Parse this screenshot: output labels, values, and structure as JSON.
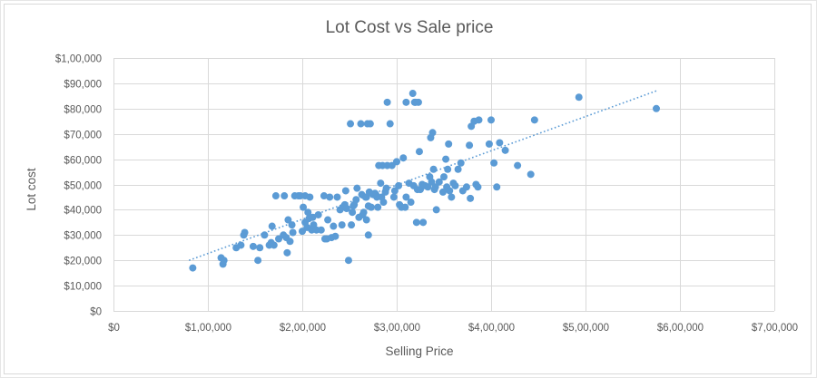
{
  "chart_data": {
    "type": "scatter",
    "title": "Lot Cost vs Sale price",
    "xlabel": "Selling Price",
    "ylabel": "Lot cost",
    "xlim": [
      0,
      700000
    ],
    "ylim": [
      0,
      100000
    ],
    "x_ticks": [
      0,
      100000,
      200000,
      300000,
      400000,
      500000,
      600000,
      700000
    ],
    "x_tick_labels": [
      "$0",
      "$1,00,000",
      "$2,00,000",
      "$3,00,000",
      "$4,00,000",
      "$5,00,000",
      "$6,00,000",
      "$7,00,000"
    ],
    "y_ticks": [
      0,
      10000,
      20000,
      30000,
      40000,
      50000,
      60000,
      70000,
      80000,
      90000,
      100000
    ],
    "y_tick_labels": [
      "$0",
      "$10,000",
      "$20,000",
      "$30,000",
      "$40,000",
      "$50,000",
      "$60,000",
      "$70,000",
      "$80,000",
      "$90,000",
      "$1,00,000"
    ],
    "grid": true,
    "legend": "none",
    "marker_color": "#5b9bd5",
    "trendline": {
      "type": "linear",
      "style": "dotted",
      "color": "#5b9bd5",
      "x": [
        80000,
        575000
      ],
      "y": [
        20000,
        87000
      ]
    },
    "points": [
      [
        84000,
        17000
      ],
      [
        114000,
        21000
      ],
      [
        116000,
        18500
      ],
      [
        117000,
        20000
      ],
      [
        130000,
        25000
      ],
      [
        135000,
        26000
      ],
      [
        138000,
        30000
      ],
      [
        139000,
        31000
      ],
      [
        148000,
        25500
      ],
      [
        153000,
        20000
      ],
      [
        155000,
        25000
      ],
      [
        160000,
        30000
      ],
      [
        165000,
        26000
      ],
      [
        167000,
        27000
      ],
      [
        168000,
        33500
      ],
      [
        170000,
        26000
      ],
      [
        172000,
        45500
      ],
      [
        175000,
        28500
      ],
      [
        180000,
        30000
      ],
      [
        181000,
        45500
      ],
      [
        183000,
        29000
      ],
      [
        184000,
        23000
      ],
      [
        185000,
        36000
      ],
      [
        187000,
        27500
      ],
      [
        189000,
        34000
      ],
      [
        190000,
        31000
      ],
      [
        192000,
        45500
      ],
      [
        196000,
        45500
      ],
      [
        198000,
        45500
      ],
      [
        200000,
        31500
      ],
      [
        201000,
        41000
      ],
      [
        203000,
        45500
      ],
      [
        203000,
        35000
      ],
      [
        205000,
        33000
      ],
      [
        206000,
        39000
      ],
      [
        207000,
        36500
      ],
      [
        208000,
        45000
      ],
      [
        210000,
        32000
      ],
      [
        211000,
        37000
      ],
      [
        212000,
        34000
      ],
      [
        215000,
        32000
      ],
      [
        217000,
        38000
      ],
      [
        220000,
        32000
      ],
      [
        223000,
        45500
      ],
      [
        224000,
        28500
      ],
      [
        226000,
        28500
      ],
      [
        227000,
        36000
      ],
      [
        229000,
        45000
      ],
      [
        231000,
        29000
      ],
      [
        233000,
        33500
      ],
      [
        235000,
        29500
      ],
      [
        237000,
        45000
      ],
      [
        240000,
        40000
      ],
      [
        242000,
        34000
      ],
      [
        243000,
        41000
      ],
      [
        245000,
        42000
      ],
      [
        246000,
        47500
      ],
      [
        247000,
        40500
      ],
      [
        249000,
        20000
      ],
      [
        251000,
        74000
      ],
      [
        252000,
        34000
      ],
      [
        253000,
        39000
      ],
      [
        254000,
        41500
      ],
      [
        255000,
        42000
      ],
      [
        257000,
        44000
      ],
      [
        258000,
        48500
      ],
      [
        260000,
        37000
      ],
      [
        262000,
        74000
      ],
      [
        263000,
        46000
      ],
      [
        264000,
        38000
      ],
      [
        265000,
        39000
      ],
      [
        267000,
        45000
      ],
      [
        268000,
        45000
      ],
      [
        268000,
        36000
      ],
      [
        269000,
        74000
      ],
      [
        270000,
        30000
      ],
      [
        270000,
        41500
      ],
      [
        271000,
        47000
      ],
      [
        272000,
        74000
      ],
      [
        273000,
        41000
      ],
      [
        275000,
        46000
      ],
      [
        277000,
        46500
      ],
      [
        278000,
        46000
      ],
      [
        279000,
        45000
      ],
      [
        280000,
        41000
      ],
      [
        281000,
        57500
      ],
      [
        283000,
        50500
      ],
      [
        284000,
        45000
      ],
      [
        285000,
        57500
      ],
      [
        286000,
        43000
      ],
      [
        288000,
        47000
      ],
      [
        289000,
        48500
      ],
      [
        290000,
        57500
      ],
      [
        290000,
        82500
      ],
      [
        293000,
        74000
      ],
      [
        295000,
        57500
      ],
      [
        297000,
        45000
      ],
      [
        298000,
        47500
      ],
      [
        300000,
        59000
      ],
      [
        302000,
        49500
      ],
      [
        303000,
        42000
      ],
      [
        305000,
        41000
      ],
      [
        307000,
        60500
      ],
      [
        309000,
        41000
      ],
      [
        310000,
        45000
      ],
      [
        310000,
        82500
      ],
      [
        313000,
        50500
      ],
      [
        315000,
        43000
      ],
      [
        317000,
        86000
      ],
      [
        318000,
        49500
      ],
      [
        319000,
        82500
      ],
      [
        320000,
        82500
      ],
      [
        321000,
        35000
      ],
      [
        322000,
        48000
      ],
      [
        323000,
        82500
      ],
      [
        324000,
        63000
      ],
      [
        325000,
        48000
      ],
      [
        327000,
        50000
      ],
      [
        328000,
        35000
      ],
      [
        330000,
        49500
      ],
      [
        333000,
        49000
      ],
      [
        335000,
        53000
      ],
      [
        336000,
        68500
      ],
      [
        337000,
        51000
      ],
      [
        338000,
        70500
      ],
      [
        339000,
        56000
      ],
      [
        340000,
        48000
      ],
      [
        341000,
        49000
      ],
      [
        342000,
        40000
      ],
      [
        345000,
        51000
      ],
      [
        349000,
        47000
      ],
      [
        350000,
        53000
      ],
      [
        352000,
        60000
      ],
      [
        353000,
        49000
      ],
      [
        354000,
        56000
      ],
      [
        355000,
        66000
      ],
      [
        356000,
        47500
      ],
      [
        358000,
        45000
      ],
      [
        360000,
        50500
      ],
      [
        362000,
        49500
      ],
      [
        365000,
        56000
      ],
      [
        368000,
        58500
      ],
      [
        370000,
        47500
      ],
      [
        374000,
        49000
      ],
      [
        377000,
        65500
      ],
      [
        378000,
        44500
      ],
      [
        379000,
        73000
      ],
      [
        382000,
        75000
      ],
      [
        384000,
        50000
      ],
      [
        386000,
        49000
      ],
      [
        387000,
        75500
      ],
      [
        398000,
        66000
      ],
      [
        400000,
        75500
      ],
      [
        403000,
        58500
      ],
      [
        406000,
        49000
      ],
      [
        409000,
        66500
      ],
      [
        415000,
        63500
      ],
      [
        428000,
        57500
      ],
      [
        442000,
        54000
      ],
      [
        446000,
        75500
      ],
      [
        493000,
        84500
      ],
      [
        575000,
        80000
      ]
    ]
  }
}
